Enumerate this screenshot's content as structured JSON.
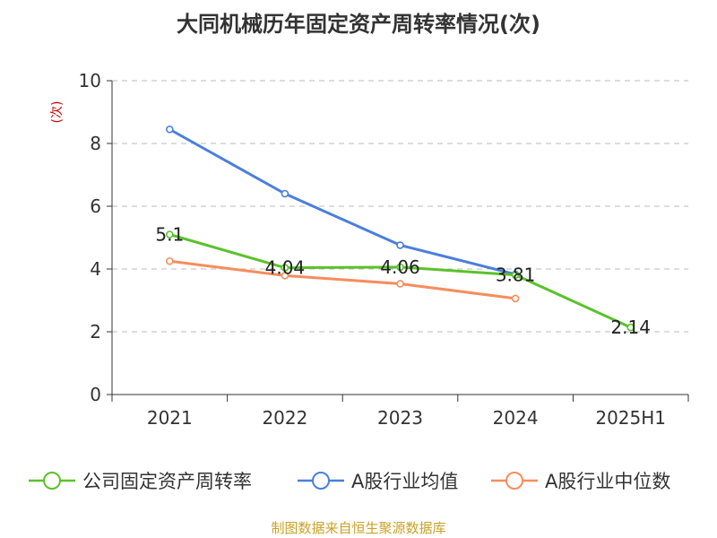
{
  "chart_data": {
    "type": "line",
    "title": "大同机械历年固定资产周转率情况(次)",
    "ylabel": "(次)",
    "xlabel": "",
    "categories": [
      "2021",
      "2022",
      "2023",
      "2024",
      "2025H1"
    ],
    "ylim": [
      0,
      10
    ],
    "yticks": [
      0,
      2,
      4,
      6,
      8,
      10
    ],
    "grid": true,
    "legend_position": "bottom",
    "series": [
      {
        "name": "公司固定资产周转率",
        "color": "#5bc22a",
        "values": [
          5.1,
          4.04,
          4.06,
          3.81,
          2.14
        ],
        "labels": [
          "5.1",
          "4.04",
          "4.06",
          "3.81",
          "2.14"
        ],
        "show_labels": true
      },
      {
        "name": "A股行业均值",
        "color": "#4a7fdc",
        "values": [
          8.45,
          6.4,
          4.76,
          3.83,
          null
        ],
        "show_labels": false
      },
      {
        "name": "A股行业中位数",
        "color": "#f58d5c",
        "values": [
          4.25,
          3.79,
          3.53,
          3.06,
          null
        ],
        "show_labels": false
      }
    ],
    "source": "制图数据来自恒生聚源数据库",
    "colors": {
      "axis": "#333333",
      "grid": "#bbbbbb",
      "ylabel": "#cc0000",
      "source": "#c9a227"
    }
  }
}
